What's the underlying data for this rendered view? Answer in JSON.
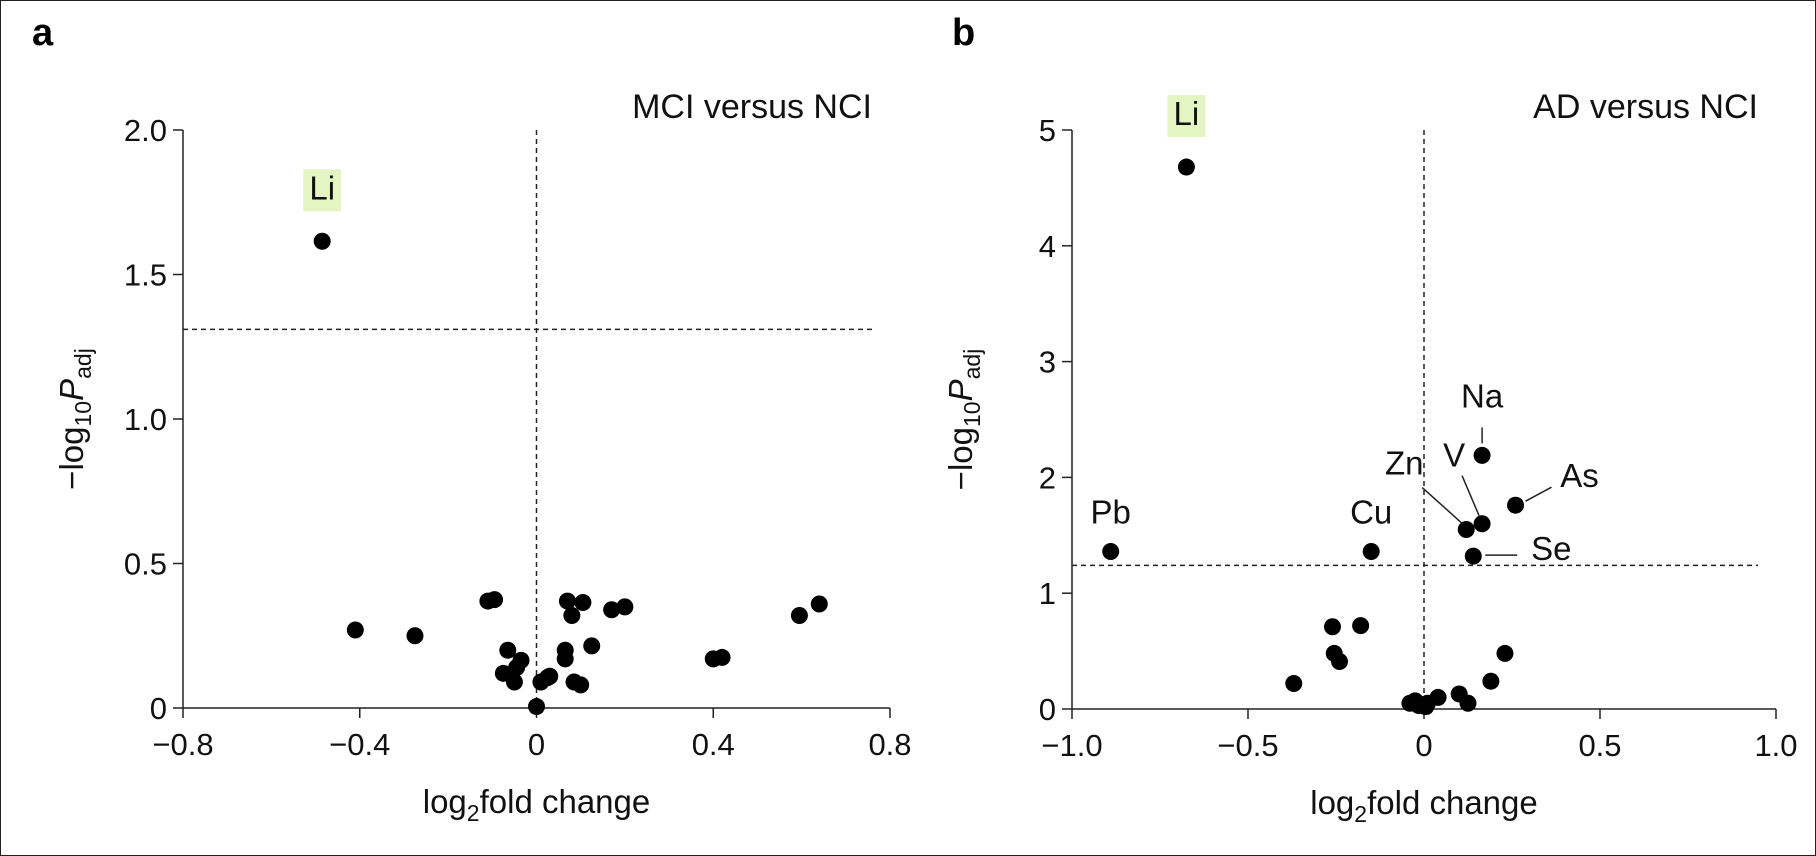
{
  "panels": {
    "a_letter": "a",
    "b_letter": "b"
  },
  "chart_data": [
    {
      "type": "scatter",
      "panel": "a",
      "title": "MCI versus NCI",
      "xlabel_main": "log",
      "xlabel_sub": "2",
      "xlabel_rest": "fold change",
      "ylabel_prefix": "−log",
      "ylabel_sub": "10",
      "ylabel_P": "P",
      "ylabel_Psub": "adj",
      "xlim": [
        -0.8,
        0.8
      ],
      "ylim": [
        0,
        2.0
      ],
      "xticks": [
        -0.8,
        -0.4,
        0,
        0.4,
        0.8
      ],
      "xtick_labels": [
        "−0.8",
        "−0.4",
        "0",
        "0.4",
        "0.8"
      ],
      "yticks": [
        0,
        0.5,
        1.0,
        1.5,
        2.0
      ],
      "ytick_labels": [
        "0",
        "0.5",
        "1.0",
        "1.5",
        "2.0"
      ],
      "threshold_y": 1.31,
      "vline_x": 0,
      "highlight_color": "#e4f5c4",
      "labels": [
        {
          "text": "Li",
          "x": -0.485,
          "y": 1.615,
          "highlight": true
        }
      ],
      "points": [
        {
          "x": -0.485,
          "y": 1.615
        },
        {
          "x": -0.41,
          "y": 0.27
        },
        {
          "x": -0.275,
          "y": 0.25
        },
        {
          "x": -0.11,
          "y": 0.37
        },
        {
          "x": -0.095,
          "y": 0.375
        },
        {
          "x": -0.075,
          "y": 0.12
        },
        {
          "x": -0.065,
          "y": 0.2
        },
        {
          "x": -0.05,
          "y": 0.09
        },
        {
          "x": -0.045,
          "y": 0.14
        },
        {
          "x": -0.035,
          "y": 0.165
        },
        {
          "x": 0,
          "y": 0.005
        },
        {
          "x": 0.01,
          "y": 0.09
        },
        {
          "x": 0.025,
          "y": 0.105
        },
        {
          "x": 0.03,
          "y": 0.11
        },
        {
          "x": 0.065,
          "y": 0.17
        },
        {
          "x": 0.065,
          "y": 0.2
        },
        {
          "x": 0.07,
          "y": 0.37
        },
        {
          "x": 0.08,
          "y": 0.32
        },
        {
          "x": 0.085,
          "y": 0.09
        },
        {
          "x": 0.1,
          "y": 0.08
        },
        {
          "x": 0.105,
          "y": 0.365
        },
        {
          "x": 0.125,
          "y": 0.215
        },
        {
          "x": 0.17,
          "y": 0.34
        },
        {
          "x": 0.2,
          "y": 0.35
        },
        {
          "x": 0.4,
          "y": 0.17
        },
        {
          "x": 0.42,
          "y": 0.175
        },
        {
          "x": 0.595,
          "y": 0.32
        },
        {
          "x": 0.64,
          "y": 0.36
        }
      ]
    },
    {
      "type": "scatter",
      "panel": "b",
      "title": "AD versus NCI",
      "xlabel_main": "log",
      "xlabel_sub": "2",
      "xlabel_rest": "fold change",
      "ylabel_prefix": "−log",
      "ylabel_sub": "10",
      "ylabel_P": "P",
      "ylabel_Psub": "adj",
      "xlim": [
        -1.0,
        1.0
      ],
      "ylim": [
        0,
        5
      ],
      "xticks": [
        -1.0,
        -0.5,
        0,
        0.5,
        1.0
      ],
      "xtick_labels": [
        "−1.0",
        "−0.5",
        "0",
        "0.5",
        "1.0"
      ],
      "yticks": [
        0,
        1,
        2,
        3,
        4,
        5
      ],
      "ytick_labels": [
        "0",
        "1",
        "2",
        "3",
        "4",
        "5"
      ],
      "threshold_y": 1.24,
      "vline_x": 0,
      "highlight_color": "#e4f5c4",
      "labels": [
        {
          "text": "Li",
          "x": -0.675,
          "y": 4.68,
          "highlight": true
        },
        {
          "text": "Pb",
          "x": -0.89,
          "y": 1.36,
          "highlight": false
        },
        {
          "text": "Cu",
          "x": -0.15,
          "y": 1.36,
          "highlight": false
        },
        {
          "text": "Na",
          "x": 0.165,
          "y": 2.19,
          "highlight": false
        },
        {
          "text": "Zn",
          "x": 0.12,
          "y": 1.55,
          "highlight": false
        },
        {
          "text": "V",
          "x": 0.165,
          "y": 1.6,
          "highlight": false
        },
        {
          "text": "As",
          "x": 0.26,
          "y": 1.76,
          "highlight": false
        },
        {
          "text": "Se",
          "x": 0.14,
          "y": 1.32,
          "highlight": false
        }
      ],
      "points": [
        {
          "x": -0.675,
          "y": 4.68
        },
        {
          "x": -0.89,
          "y": 1.36
        },
        {
          "x": -0.15,
          "y": 1.36
        },
        {
          "x": 0.165,
          "y": 2.19
        },
        {
          "x": 0.12,
          "y": 1.55
        },
        {
          "x": 0.165,
          "y": 1.6
        },
        {
          "x": 0.26,
          "y": 1.76
        },
        {
          "x": 0.14,
          "y": 1.32
        },
        {
          "x": -0.37,
          "y": 0.22
        },
        {
          "x": -0.26,
          "y": 0.71
        },
        {
          "x": -0.255,
          "y": 0.48
        },
        {
          "x": -0.24,
          "y": 0.41
        },
        {
          "x": -0.18,
          "y": 0.72
        },
        {
          "x": -0.04,
          "y": 0.05
        },
        {
          "x": -0.025,
          "y": 0.07
        },
        {
          "x": -0.015,
          "y": 0.03
        },
        {
          "x": 0.005,
          "y": 0.02
        },
        {
          "x": 0.01,
          "y": 0.05
        },
        {
          "x": 0.04,
          "y": 0.1
        },
        {
          "x": 0.1,
          "y": 0.13
        },
        {
          "x": 0.125,
          "y": 0.05
        },
        {
          "x": 0.19,
          "y": 0.24
        },
        {
          "x": 0.23,
          "y": 0.48
        }
      ]
    }
  ]
}
